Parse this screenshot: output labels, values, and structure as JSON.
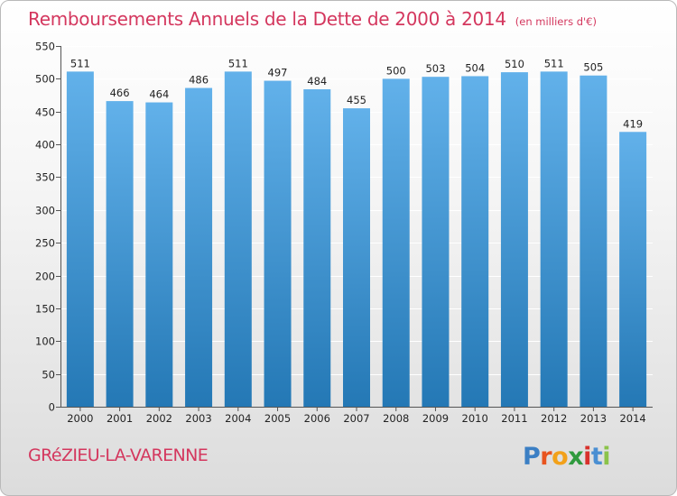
{
  "header": {
    "title": "Remboursements Annuels de la Dette de 2000 à 2014",
    "unit": "(en milliers d'€)"
  },
  "footer": {
    "commune": "GRéZIEU-LA-VARENNE",
    "logo": {
      "letters": [
        "P",
        "r",
        "o",
        "x",
        "i",
        "t",
        "i"
      ],
      "colors": [
        "#3b7fc4",
        "#e8541f",
        "#f2a11a",
        "#2f9a3e",
        "#d8312c",
        "#4a8fd2",
        "#8bc34a"
      ]
    }
  },
  "colors": {
    "accent": "#d4375e",
    "bar_top": "#62b1ea",
    "bar_bottom": "#2478b5"
  },
  "chart_data": {
    "type": "bar",
    "categories": [
      "2000",
      "2001",
      "2002",
      "2003",
      "2004",
      "2005",
      "2006",
      "2007",
      "2008",
      "2009",
      "2010",
      "2011",
      "2012",
      "2013",
      "2014"
    ],
    "values": [
      511,
      466,
      464,
      486,
      511,
      497,
      484,
      455,
      500,
      503,
      504,
      510,
      511,
      505,
      419
    ],
    "ylim": [
      0,
      550
    ],
    "yticks": [
      0,
      50,
      100,
      150,
      200,
      250,
      300,
      350,
      400,
      450,
      500,
      550
    ],
    "grid": true,
    "data_labels": true
  }
}
